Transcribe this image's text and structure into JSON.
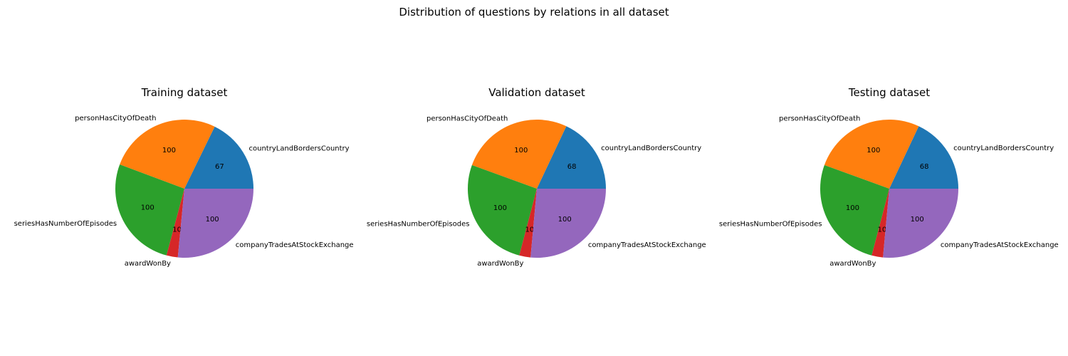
{
  "figure": {
    "title": "Distribution of questions by relations in all dataset"
  },
  "colors": [
    "#1f77b4",
    "#ff7f0e",
    "#2ca02c",
    "#d62728",
    "#9467bd"
  ],
  "chart_data": [
    {
      "type": "pie",
      "title": "Training dataset",
      "categories": [
        "countryLandBordersCountry",
        "personHasCityOfDeath",
        "seriesHasNumberOfEpisodes",
        "awardWonBy",
        "companyTradesAtStockExchange"
      ],
      "values": [
        67,
        100,
        100,
        10,
        100
      ],
      "value_labels": [
        "67",
        "100",
        "100",
        "10",
        "100"
      ]
    },
    {
      "type": "pie",
      "title": "Validation dataset",
      "categories": [
        "countryLandBordersCountry",
        "personHasCityOfDeath",
        "seriesHasNumberOfEpisodes",
        "awardWonBy",
        "companyTradesAtStockExchange"
      ],
      "values": [
        68,
        100,
        100,
        10,
        100
      ],
      "value_labels": [
        "68",
        "100",
        "100",
        "10",
        "100"
      ]
    },
    {
      "type": "pie",
      "title": "Testing dataset",
      "categories": [
        "countryLandBordersCountry",
        "personHasCityOfDeath",
        "seriesHasNumberOfEpisodes",
        "awardWonBy",
        "companyTradesAtStockExchange"
      ],
      "values": [
        68,
        100,
        100,
        10,
        100
      ],
      "value_labels": [
        "68",
        "100",
        "100",
        "10",
        "100"
      ]
    }
  ]
}
